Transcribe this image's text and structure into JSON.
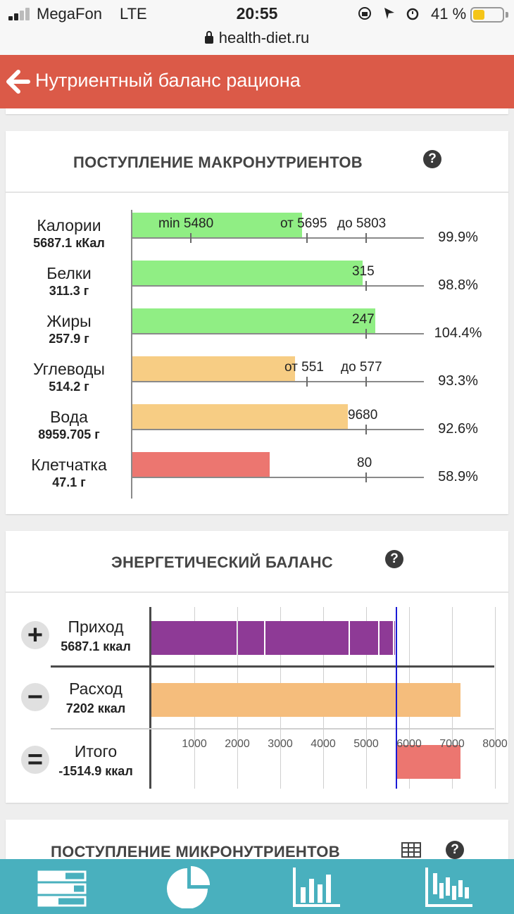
{
  "statusbar": {
    "carrier": "MegaFon",
    "network": "LTE",
    "time": "20:55",
    "battery": "41 %",
    "battery_level": 0.41,
    "url": "health-diet.ru"
  },
  "header": {
    "title": "Нутриентный баланс рациона",
    "back_icon": "arrow-left-icon"
  },
  "macros": {
    "title": "ПОСТУПЛЕНИЕ МАКРОНУТРИЕНТОВ",
    "help_icon": "question-circle-icon",
    "rows": [
      {
        "label": "Калории",
        "value": "5687.1 кКал",
        "percent": "99.9%",
        "fill": 0.6,
        "color": "#90ee84",
        "marks": [
          {
            "text": "min 5480"
          },
          {
            "text": "от 5695"
          },
          {
            "text": "до 5803"
          }
        ]
      },
      {
        "label": "Белки",
        "value": "311.3 г",
        "percent": "98.8%",
        "fill": 0.79,
        "color": "#90ee84",
        "marks": [
          {
            "text": "315"
          }
        ]
      },
      {
        "label": "Жиры",
        "value": "257.9 г",
        "percent": "104.4%",
        "fill": 0.84,
        "color": "#90ee84",
        "marks": [
          {
            "text": "247"
          }
        ]
      },
      {
        "label": "Углеводы",
        "value": "514.2 г",
        "percent": "93.3%",
        "fill": 0.56,
        "color": "#f7cd84",
        "marks": [
          {
            "text": "от 551"
          },
          {
            "text": "до 577"
          }
        ]
      },
      {
        "label": "Вода",
        "value": "8959.705 г",
        "percent": "92.6%",
        "fill": 0.74,
        "color": "#f7cd84",
        "marks": [
          {
            "text": "9680"
          }
        ]
      },
      {
        "label": "Клетчатка",
        "value": "47.1 г",
        "percent": "58.9%",
        "fill": 0.47,
        "color": "#ec7670",
        "marks": [
          {
            "text": "80"
          }
        ]
      }
    ]
  },
  "energy": {
    "title": "ЭНЕРГЕТИЧЕСКИЙ БАЛАНС",
    "help_icon": "question-circle-icon",
    "rows": [
      {
        "sign": "+",
        "label": "Приход",
        "value": "5687.1 ккал"
      },
      {
        "sign": "−",
        "label": "Расход",
        "value": "7202 ккал"
      },
      {
        "sign": "=",
        "label": "Итого",
        "value": "-1514.9 ккал"
      }
    ],
    "x_ticks": [
      "1000",
      "2000",
      "3000",
      "4000",
      "5000",
      "6000",
      "7000",
      "8000"
    ]
  },
  "chart_data": {
    "type": "bar",
    "categories": [
      "Приход",
      "Расход",
      "Итого"
    ],
    "xlim": [
      0,
      8000
    ],
    "income_segments": [
      2010,
      640,
      1970,
      690,
      350,
      27.1
    ],
    "income_total": 5687.1,
    "expense": 7202,
    "balance": -1514.9,
    "reference_line": 5687.1,
    "colors": {
      "income": "#8e3a96",
      "expense": "#f5bd7c",
      "balance": "#ec7670",
      "reference": "#1a1ad6"
    }
  },
  "micro": {
    "title": "ПОСТУПЛЕНИЕ МИКРОНУТРИЕНТОВ",
    "table_icon": "table-icon",
    "help_icon": "question-circle-icon"
  },
  "bottomnav": {
    "items": [
      "list-icon",
      "pie-chart-icon",
      "bar-chart-icon",
      "histogram-icon"
    ]
  }
}
